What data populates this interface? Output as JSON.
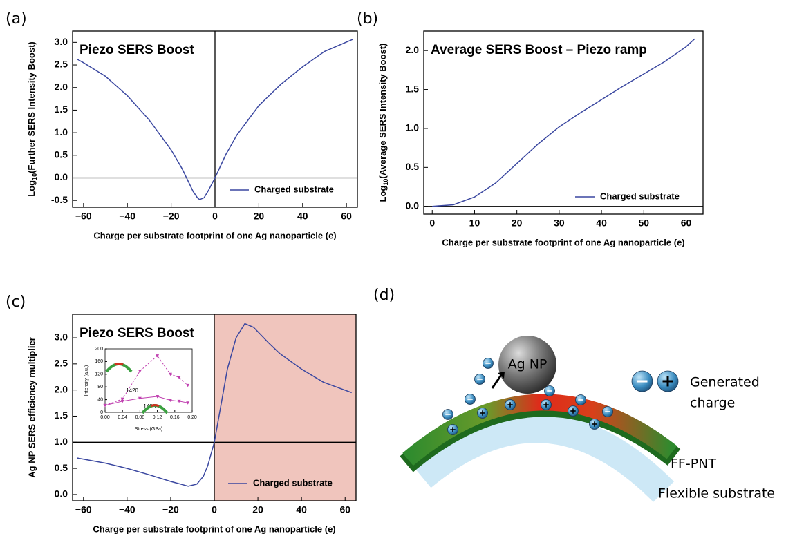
{
  "chart_data": [
    {
      "type": "line",
      "panel_label": "(a)",
      "annotation": "Piezo SERS Boost",
      "xlabel": "Charge per substrate footprint of one Ag nanoparticle (e)",
      "ylabel": {
        "prefix": "Log",
        "sub": "10",
        "rest": "(Further SERS Intensity Boost)"
      },
      "x": [
        -63,
        -60,
        -50,
        -40,
        -30,
        -20,
        -15,
        -12,
        -10,
        -8,
        -7,
        -5,
        -3,
        0,
        5,
        10,
        20,
        30,
        40,
        50,
        63
      ],
      "series": [
        {
          "name": "Charged substrate",
          "color": "#3a47a0",
          "values": [
            2.63,
            2.55,
            2.25,
            1.82,
            1.28,
            0.62,
            0.2,
            -0.1,
            -0.3,
            -0.44,
            -0.48,
            -0.44,
            -0.28,
            0.0,
            0.52,
            0.95,
            1.6,
            2.07,
            2.46,
            2.8,
            3.07
          ]
        }
      ],
      "xlim": [
        -65,
        65
      ],
      "xticks": [
        -60,
        -40,
        -20,
        0,
        20,
        40,
        60
      ],
      "ylim": [
        -0.65,
        3.25
      ],
      "yticks": [
        -0.5,
        {
          "value": 0,
          "label": "0.0"
        },
        0.5,
        {
          "value": 1,
          "label": "1.0"
        },
        1.5,
        {
          "value": 2,
          "label": "2.0"
        },
        2.5,
        {
          "value": 3,
          "label": "3.0"
        }
      ],
      "hline": 0,
      "vline": 0,
      "legend": "lower right"
    },
    {
      "type": "line",
      "panel_label": "(b)",
      "annotation": "Average SERS Boost – Piezo ramp",
      "xlabel": "Charge per substrate footprint of one Ag nanoparticle (e)",
      "ylabel": {
        "prefix": "Log",
        "sub": "10",
        "rest": "(Average SERS Intensity Boost)"
      },
      "x": [
        0,
        5,
        10,
        15,
        20,
        25,
        30,
        35,
        40,
        45,
        50,
        55,
        60,
        62
      ],
      "series": [
        {
          "name": "Charged substrate",
          "color": "#3a47a0",
          "values": [
            0,
            0.02,
            0.12,
            0.3,
            0.55,
            0.8,
            1.02,
            1.2,
            1.37,
            1.54,
            1.7,
            1.86,
            2.05,
            2.15
          ]
        }
      ],
      "xlim": [
        -2,
        64
      ],
      "xticks": [
        0,
        10,
        20,
        30,
        40,
        50,
        60
      ],
      "ylim": [
        -0.1,
        2.25
      ],
      "yticks": [
        {
          "value": 0,
          "label": "0.0"
        },
        0.5,
        {
          "value": 1,
          "label": "1.0"
        },
        1.5,
        {
          "value": 2,
          "label": "2.0"
        }
      ],
      "hline": 0,
      "legend": "lower right"
    },
    {
      "type": "line",
      "panel_label": "(c)",
      "annotation": "Piezo SERS Boost",
      "xlabel": "Charge per substrate footprint of one Ag nanoparticle (e)",
      "ylabel": "Ag NP SERS efficiency multiplier",
      "x": [
        -63,
        -50,
        -40,
        -30,
        -20,
        -12,
        -8,
        -5,
        -3,
        0,
        3,
        6,
        10,
        14,
        18,
        25,
        30,
        40,
        50,
        63
      ],
      "series": [
        {
          "name": "Charged substrate",
          "color": "#3a47a0",
          "values": [
            0.7,
            0.6,
            0.5,
            0.38,
            0.25,
            0.16,
            0.2,
            0.35,
            0.55,
            1.0,
            1.7,
            2.4,
            3.0,
            3.27,
            3.2,
            2.9,
            2.7,
            2.4,
            2.15,
            1.95
          ]
        }
      ],
      "xlim": [
        -65,
        65
      ],
      "xticks": [
        -60,
        -40,
        -20,
        0,
        20,
        40,
        60
      ],
      "ylim": [
        -0.12,
        3.45
      ],
      "yticks": [
        {
          "value": 0,
          "label": "0.0"
        },
        0.5,
        {
          "value": 1,
          "label": "1.0"
        },
        1.5,
        {
          "value": 2,
          "label": "2.0"
        },
        2.5,
        {
          "value": 3,
          "label": "3.0"
        }
      ],
      "hline": 1,
      "vline": 0,
      "shade_positive": "#f0c5bd",
      "legend": "lower right"
    },
    {
      "type": "inset",
      "xlabel": "Stress (GPa)",
      "ylabel": "Intensity (a.u.)",
      "x": [
        0,
        0.04,
        0.08,
        0.12,
        0.15,
        0.17,
        0.19
      ],
      "series": [
        {
          "color": "#c040b0",
          "dash": true,
          "values": [
            22,
            42,
            130,
            178,
            120,
            110,
            85
          ]
        },
        {
          "color": "#c040b0",
          "dash": false,
          "values": [
            22,
            35,
            44,
            50,
            38,
            35,
            30
          ]
        }
      ],
      "annotations": [
        "1420",
        "1420"
      ],
      "xlim": [
        0,
        0.2
      ],
      "xticks": [
        {
          "value": 0,
          "label": "0.00"
        },
        0.04,
        0.08,
        0.12,
        0.16,
        {
          "value": 0.2,
          "label": "0.20"
        }
      ],
      "ylim": [
        0,
        200
      ],
      "yticks": [
        0,
        40,
        80,
        120,
        160,
        200
      ]
    }
  ],
  "diagram": {
    "panel_label": "(d)",
    "particle": "Ag NP",
    "legend": [
      "Generated",
      "charge"
    ],
    "tube": "FF-PNT",
    "substrate": "Flexible substrate"
  }
}
